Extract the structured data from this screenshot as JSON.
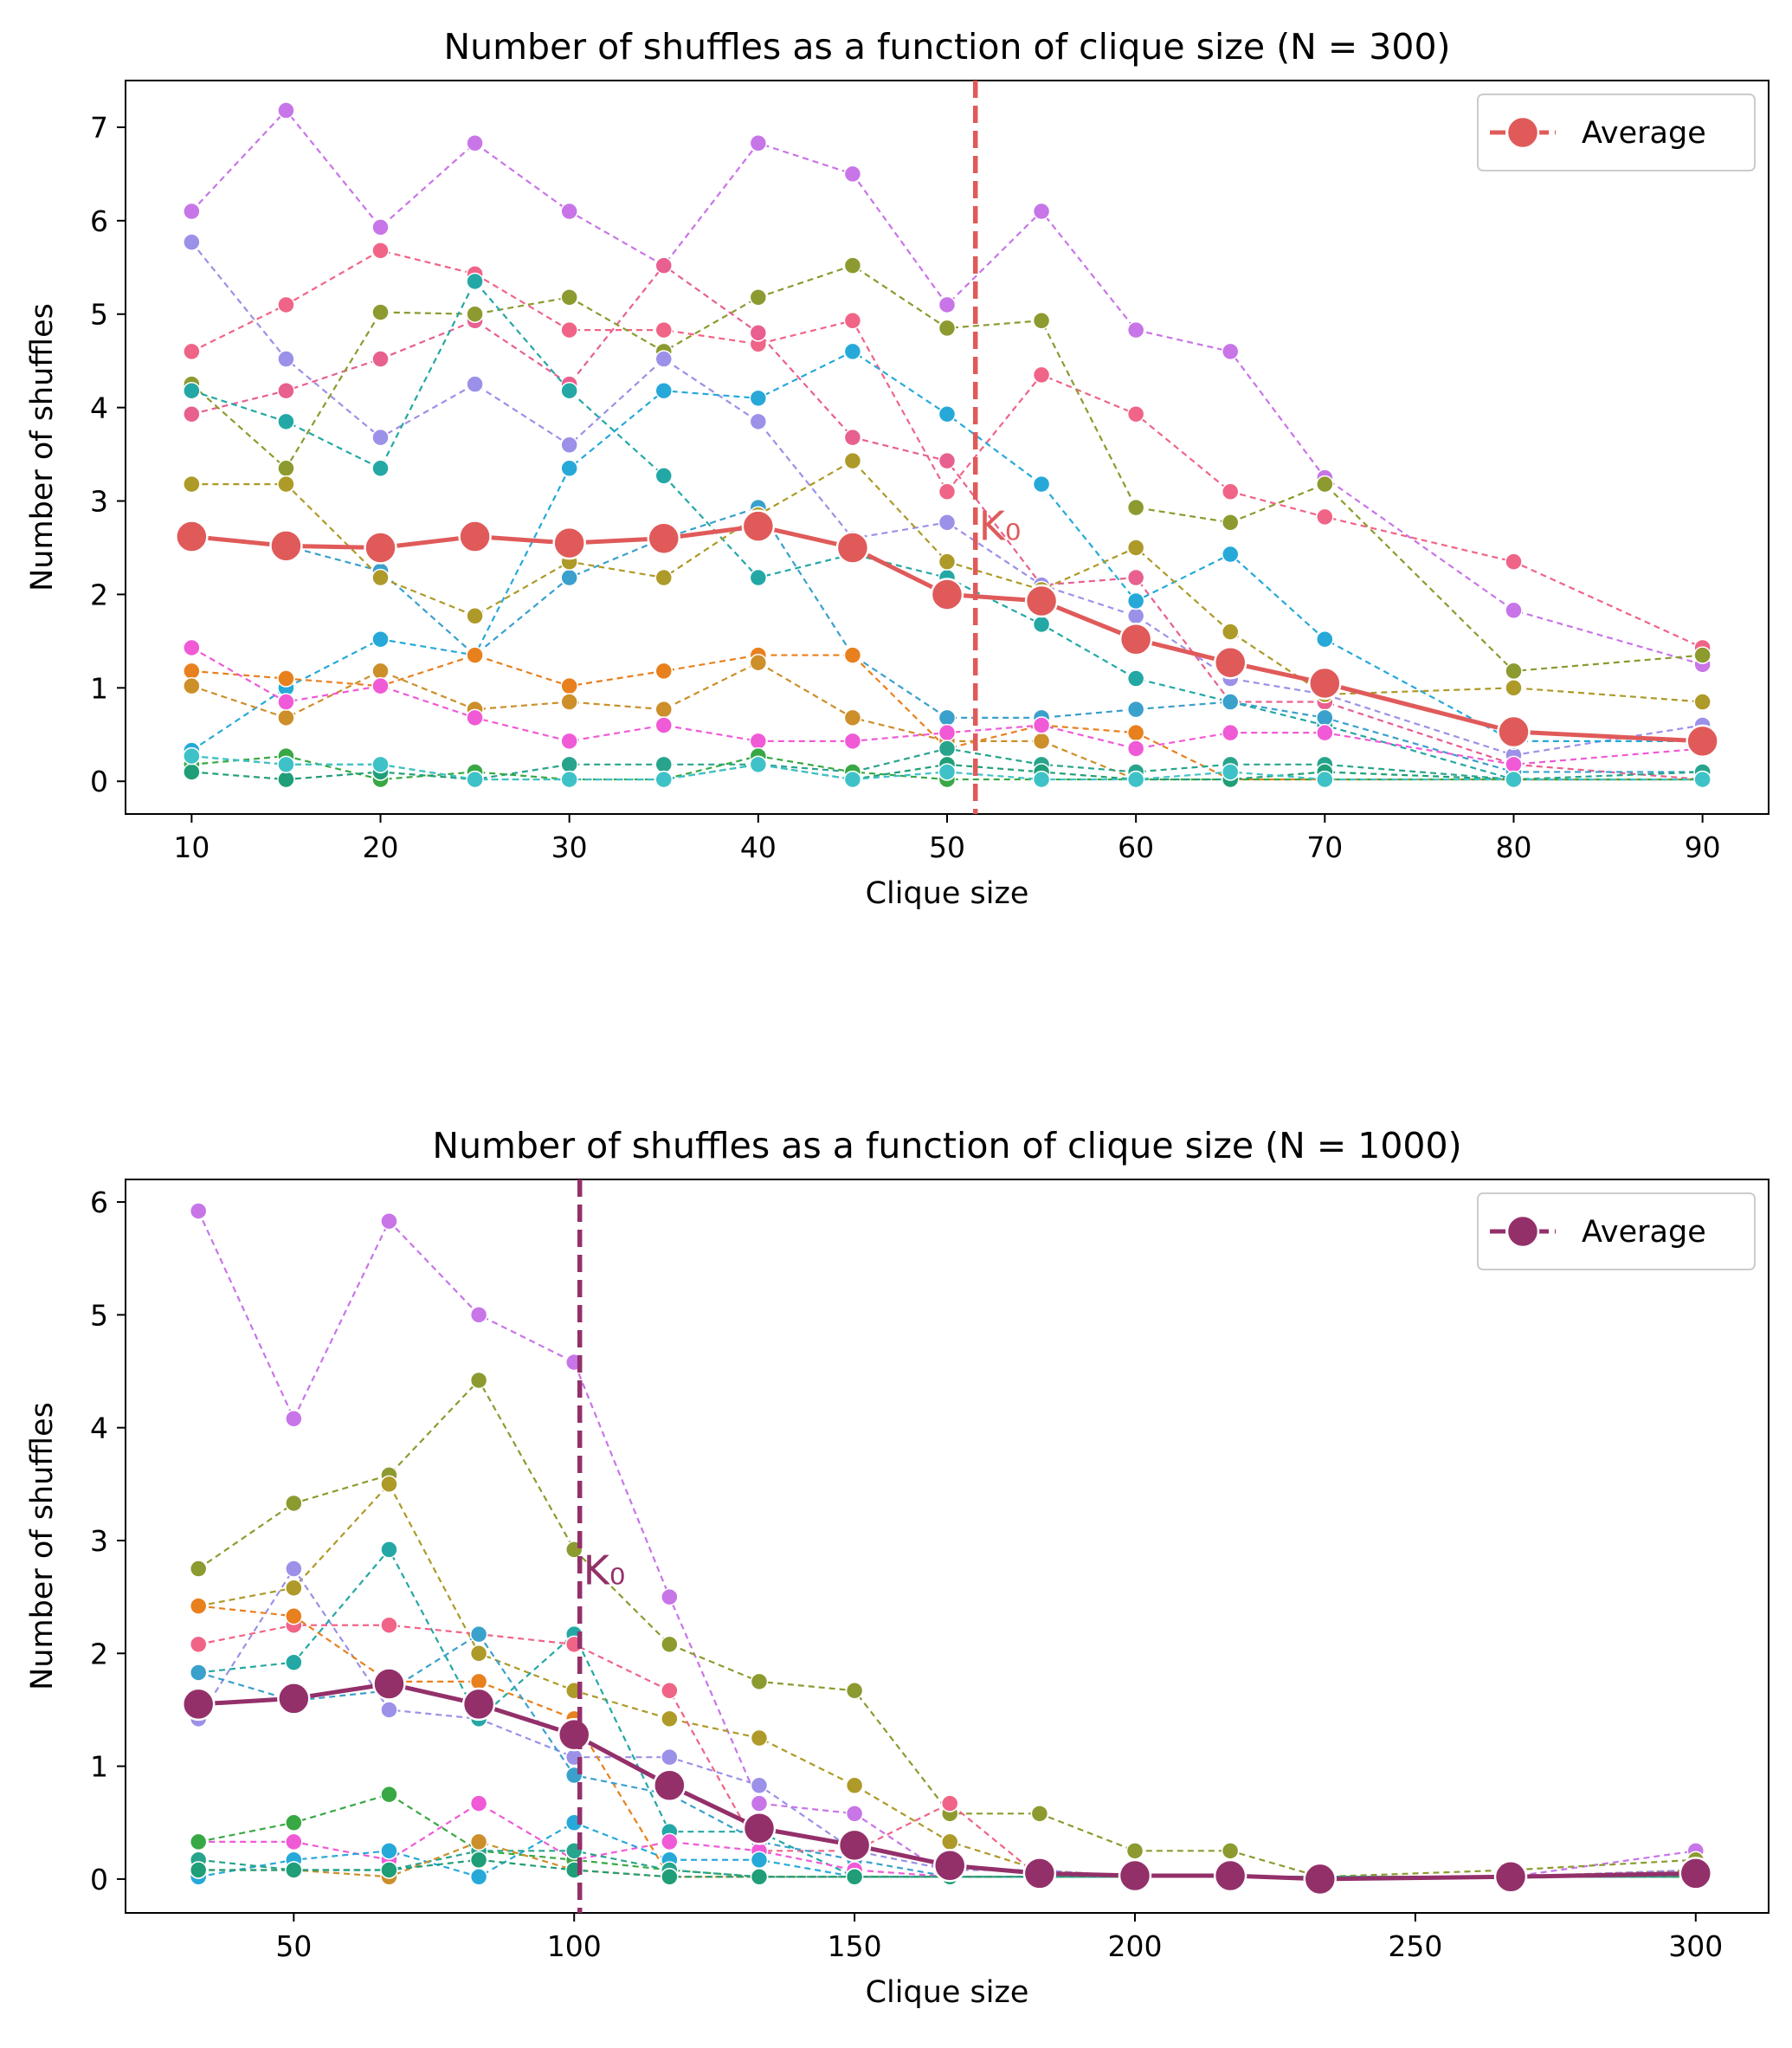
{
  "chart_data": [
    {
      "type": "line",
      "title": "Number of shuffles as a function of clique size (N = 300)",
      "xlabel": "Clique size",
      "ylabel": "Number of shuffles",
      "xlim": [
        6.5,
        93.5
      ],
      "ylim": [
        -0.35,
        7.5
      ],
      "xticks": [
        10,
        20,
        30,
        40,
        50,
        60,
        70,
        80,
        90
      ],
      "yticks": [
        0,
        1,
        2,
        3,
        4,
        5,
        6,
        7
      ],
      "x": [
        10,
        15,
        20,
        25,
        30,
        35,
        40,
        45,
        50,
        55,
        60,
        65,
        70,
        80,
        90
      ],
      "threshold": {
        "label": "K₀",
        "x": 51.5,
        "color": "#e05a5a"
      },
      "legend": {
        "label": "Average",
        "position": "top-right"
      },
      "average": {
        "name": "Average",
        "color": "#e05a5a",
        "values": [
          2.62,
          2.52,
          2.5,
          2.62,
          2.55,
          2.6,
          2.73,
          2.5,
          2.0,
          1.93,
          1.52,
          1.27,
          1.05,
          0.53,
          0.43
        ]
      },
      "series": [
        {
          "color": "#c875e8",
          "values": [
            6.1,
            7.18,
            5.93,
            6.83,
            6.1,
            5.52,
            6.83,
            6.5,
            5.1,
            6.1,
            4.83,
            4.6,
            3.25,
            1.83,
            1.25
          ]
        },
        {
          "color": "#f06487",
          "values": [
            4.6,
            5.1,
            5.68,
            5.43,
            4.83,
            4.83,
            4.68,
            4.93,
            3.1,
            4.35,
            3.93,
            3.1,
            2.83,
            2.35,
            1.43
          ]
        },
        {
          "color": "#e8608f",
          "values": [
            3.93,
            4.18,
            4.52,
            4.93,
            4.25,
            5.52,
            4.8,
            3.68,
            3.43,
            2.1,
            2.18,
            0.85,
            0.85,
            0.18,
            0.02
          ]
        },
        {
          "color": "#8d9a2f",
          "values": [
            4.25,
            3.35,
            5.02,
            5.0,
            5.18,
            4.6,
            5.18,
            5.52,
            4.85,
            4.93,
            2.93,
            2.77,
            3.18,
            1.18,
            1.35
          ]
        },
        {
          "color": "#9b91e8",
          "values": [
            5.77,
            4.52,
            3.68,
            4.25,
            3.6,
            4.52,
            3.85,
            2.6,
            2.77,
            2.1,
            1.77,
            1.1,
            0.93,
            0.28,
            0.6
          ]
        },
        {
          "color": "#26a9d9",
          "values": [
            0.33,
            1.0,
            1.52,
            1.35,
            3.35,
            4.18,
            4.1,
            4.6,
            3.93,
            3.18,
            1.93,
            2.43,
            1.52,
            0.43,
            0.43
          ]
        },
        {
          "color": "#24a8a5",
          "values": [
            4.18,
            3.85,
            3.35,
            5.35,
            4.18,
            3.27,
            2.18,
            2.43,
            2.18,
            1.68,
            1.1,
            0.85,
            0.6,
            0.02,
            0.02
          ]
        },
        {
          "color": "#3aa0cc",
          "values": [
            2.62,
            2.52,
            2.25,
            1.35,
            2.18,
            2.6,
            2.93,
            1.35,
            0.68,
            0.68,
            0.77,
            0.85,
            0.68,
            0.1,
            0.1
          ]
        },
        {
          "color": "#ad9a28",
          "values": [
            3.18,
            3.18,
            2.18,
            1.77,
            2.35,
            2.18,
            2.85,
            3.43,
            2.35,
            2.05,
            2.5,
            1.6,
            0.93,
            1.0,
            0.85
          ]
        },
        {
          "color": "#e8801e",
          "values": [
            1.18,
            1.1,
            1.02,
            1.35,
            1.02,
            1.18,
            1.35,
            1.35,
            0.35,
            0.6,
            0.52,
            0.02,
            0.02,
            0.02,
            0.02
          ]
        },
        {
          "color": "#cc8f2a",
          "values": [
            1.02,
            0.68,
            1.18,
            0.77,
            0.85,
            0.77,
            1.27,
            0.68,
            0.43,
            0.43,
            0.02,
            0.02,
            0.02,
            0.02,
            0.02
          ]
        },
        {
          "color": "#f05ad6",
          "values": [
            1.43,
            0.85,
            1.02,
            0.68,
            0.43,
            0.6,
            0.43,
            0.43,
            0.52,
            0.6,
            0.35,
            0.52,
            0.52,
            0.18,
            0.35
          ]
        },
        {
          "color": "#28a48d",
          "values": [
            0.27,
            0.18,
            0.18,
            0.02,
            0.18,
            0.18,
            0.18,
            0.1,
            0.35,
            0.18,
            0.1,
            0.18,
            0.18,
            0.02,
            0.1
          ]
        },
        {
          "color": "#38a844",
          "values": [
            0.18,
            0.27,
            0.02,
            0.1,
            0.02,
            0.02,
            0.27,
            0.1,
            0.02,
            0.02,
            0.02,
            0.02,
            0.02,
            0.02,
            0.02
          ]
        },
        {
          "color": "#1f9e78",
          "values": [
            0.1,
            0.02,
            0.1,
            0.02,
            0.02,
            0.02,
            0.18,
            0.02,
            0.18,
            0.1,
            0.02,
            0.02,
            0.1,
            0.02,
            0.02
          ]
        },
        {
          "color": "#3fc2c7",
          "values": [
            0.27,
            0.18,
            0.18,
            0.02,
            0.02,
            0.02,
            0.18,
            0.02,
            0.1,
            0.02,
            0.02,
            0.1,
            0.02,
            0.02,
            0.02
          ]
        }
      ]
    },
    {
      "type": "line",
      "title": "Number of shuffles as a function of clique size (N = 1000)",
      "xlabel": "Clique size",
      "ylabel": "Number of shuffles",
      "xlim": [
        20,
        313
      ],
      "ylim": [
        -0.3,
        6.2
      ],
      "xticks": [
        50,
        100,
        150,
        200,
        250,
        300
      ],
      "yticks": [
        0,
        1,
        2,
        3,
        4,
        5,
        6
      ],
      "x": [
        33,
        50,
        67,
        83,
        100,
        117,
        133,
        150,
        167,
        183,
        200,
        217,
        233,
        267,
        300
      ],
      "threshold": {
        "label": "K₀",
        "x": 101,
        "color": "#93306a"
      },
      "legend": {
        "label": "Average",
        "position": "top-right"
      },
      "average": {
        "name": "Average",
        "color": "#93306a",
        "values": [
          1.55,
          1.6,
          1.73,
          1.55,
          1.28,
          0.83,
          0.45,
          0.3,
          0.12,
          0.05,
          0.03,
          0.03,
          0.0,
          0.02,
          0.05
        ]
      },
      "series": [
        {
          "color": "#c875e8",
          "values": [
            5.92,
            4.08,
            5.83,
            5.0,
            4.58,
            2.5,
            0.67,
            0.58,
            0.02,
            0.02,
            0.02,
            0.02,
            0.02,
            0.02,
            0.25
          ]
        },
        {
          "color": "#8d9a2f",
          "values": [
            2.75,
            3.33,
            3.58,
            4.42,
            2.92,
            2.08,
            1.75,
            1.67,
            0.58,
            0.58,
            0.25,
            0.25,
            0.02,
            0.08,
            0.17
          ]
        },
        {
          "color": "#ad9a28",
          "values": [
            2.42,
            2.58,
            3.5,
            2.0,
            1.67,
            1.42,
            1.25,
            0.83,
            0.33,
            0.08,
            0.02,
            0.02,
            0.02,
            0.02,
            0.08
          ]
        },
        {
          "color": "#9b91e8",
          "values": [
            1.42,
            2.75,
            1.5,
            1.42,
            1.08,
            1.08,
            0.83,
            0.25,
            0.08,
            0.08,
            0.02,
            0.02,
            0.02,
            0.02,
            0.08
          ]
        },
        {
          "color": "#24a8a5",
          "values": [
            1.83,
            1.92,
            2.92,
            1.42,
            2.17,
            0.42,
            0.42,
            0.02,
            0.02,
            0.02,
            0.02,
            0.02,
            0.02,
            0.02,
            0.02
          ]
        },
        {
          "color": "#f06487",
          "values": [
            2.08,
            2.25,
            2.25,
            2.17,
            2.08,
            1.67,
            0.25,
            0.25,
            0.67,
            0.02,
            0.02,
            0.02,
            0.02,
            0.02,
            0.02
          ]
        },
        {
          "color": "#e8801e",
          "values": [
            2.42,
            2.33,
            1.75,
            1.75,
            1.42,
            0.02,
            0.02,
            0.02,
            0.02,
            0.02,
            0.02,
            0.02,
            0.02,
            0.02,
            0.02
          ]
        },
        {
          "color": "#3aa0cc",
          "values": [
            1.83,
            1.58,
            1.67,
            2.17,
            0.92,
            0.75,
            0.33,
            0.17,
            0.02,
            0.02,
            0.02,
            0.02,
            0.02,
            0.02,
            0.02
          ]
        },
        {
          "color": "#f05ad6",
          "values": [
            0.33,
            0.33,
            0.17,
            0.67,
            0.17,
            0.33,
            0.25,
            0.08,
            0.02,
            0.02,
            0.02,
            0.02,
            0.02,
            0.02,
            0.02
          ]
        },
        {
          "color": "#38a844",
          "values": [
            0.33,
            0.5,
            0.75,
            0.25,
            0.17,
            0.08,
            0.02,
            0.02,
            0.02,
            0.02,
            0.02,
            0.02,
            0.02,
            0.02,
            0.02
          ]
        },
        {
          "color": "#26a9d9",
          "values": [
            0.02,
            0.17,
            0.25,
            0.02,
            0.5,
            0.17,
            0.17,
            0.02,
            0.02,
            0.02,
            0.02,
            0.02,
            0.02,
            0.02,
            0.02
          ]
        },
        {
          "color": "#28a48d",
          "values": [
            0.17,
            0.08,
            0.08,
            0.25,
            0.25,
            0.08,
            0.02,
            0.02,
            0.02,
            0.02,
            0.02,
            0.02,
            0.02,
            0.02,
            0.02
          ]
        },
        {
          "color": "#cc8f2a",
          "values": [
            0.08,
            0.08,
            0.02,
            0.33,
            0.08,
            0.02,
            0.02,
            0.02,
            0.02,
            0.02,
            0.02,
            0.02,
            0.02,
            0.02,
            0.02
          ]
        },
        {
          "color": "#1f9e78",
          "values": [
            0.08,
            0.08,
            0.08,
            0.17,
            0.08,
            0.02,
            0.02,
            0.02,
            0.02,
            0.02,
            0.02,
            0.02,
            0.02,
            0.02,
            0.02
          ]
        }
      ]
    }
  ]
}
